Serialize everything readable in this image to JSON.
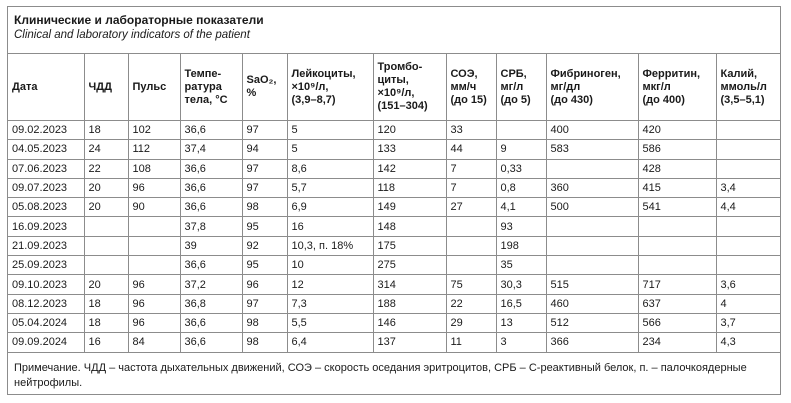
{
  "caption": {
    "title_ru": "Клинические и лабораторные показатели",
    "title_en": "Clinical and laboratory indicators of the patient"
  },
  "table": {
    "headers": [
      [
        "Дата"
      ],
      [
        "ЧДД"
      ],
      [
        "Пульс"
      ],
      [
        "Темпе-",
        "ратура",
        "тела, °С"
      ],
      [
        "SaO₂,",
        "%"
      ],
      [
        "Лейкоциты,",
        "×10⁹/л,",
        "(3,9–8,7)"
      ],
      [
        "Тромбо-",
        "циты,",
        "×10⁹/л,",
        "(151–304)"
      ],
      [
        "СОЭ,",
        "мм/ч",
        "(до 15)"
      ],
      [
        "СРБ,",
        "мг/л",
        "(до 5)"
      ],
      [
        "Фибриноген,",
        "мг/дл",
        "(до 430)"
      ],
      [
        "Ферритин,",
        "мкг/л",
        "(до 400)"
      ],
      [
        "Калий,",
        "ммоль/л",
        "(3,5–5,1)"
      ]
    ],
    "rows": [
      [
        "09.02.2023",
        "18",
        "102",
        "36,6",
        "97",
        "5",
        "120",
        "33",
        "",
        "400",
        "420",
        ""
      ],
      [
        "04.05.2023",
        "24",
        "112",
        "37,4",
        "94",
        "5",
        "133",
        "44",
        "9",
        "583",
        "586",
        ""
      ],
      [
        "07.06.2023",
        "22",
        "108",
        "36,6",
        "97",
        "8,6",
        "142",
        "7",
        "0,33",
        "",
        "428",
        ""
      ],
      [
        "09.07.2023",
        "20",
        "96",
        "36,6",
        "97",
        "5,7",
        "118",
        "7",
        "0,8",
        "360",
        "415",
        "3,4"
      ],
      [
        "05.08.2023",
        "20",
        "90",
        "36,6",
        "98",
        "6,9",
        "149",
        "27",
        "4,1",
        "500",
        "541",
        "4,4"
      ],
      [
        "16.09.2023",
        "",
        "",
        "37,8",
        "95",
        "16",
        "148",
        "",
        "93",
        "",
        "",
        ""
      ],
      [
        "21.09.2023",
        "",
        "",
        "39",
        "92",
        "10,3, п. 18%",
        "175",
        "",
        "198",
        "",
        "",
        ""
      ],
      [
        "25.09.2023",
        "",
        "",
        "36,6",
        "95",
        "10",
        "275",
        "",
        "35",
        "",
        "",
        ""
      ],
      [
        "09.10.2023",
        "20",
        "96",
        "37,2",
        "96",
        "12",
        "314",
        "75",
        "30,3",
        "515",
        "717",
        "3,6"
      ],
      [
        "08.12.2023",
        "18",
        "96",
        "36,8",
        "97",
        "7,3",
        "188",
        "22",
        "16,5",
        "460",
        "637",
        "4"
      ],
      [
        "05.04.2024",
        "18",
        "96",
        "36,6",
        "98",
        "5,5",
        "146",
        "29",
        "13",
        "512",
        "566",
        "3,7"
      ],
      [
        "09.09.2024",
        "16",
        "84",
        "36,6",
        "98",
        "6,4",
        "137",
        "11",
        "3",
        "366",
        "234",
        "4,3"
      ]
    ]
  },
  "note": "Примечание. ЧДД – частота дыхательных движений, СОЭ – скорость оседания эритроцитов, СРБ – С-реактивный белок, п. – палочкоядерные нейтрофилы."
}
